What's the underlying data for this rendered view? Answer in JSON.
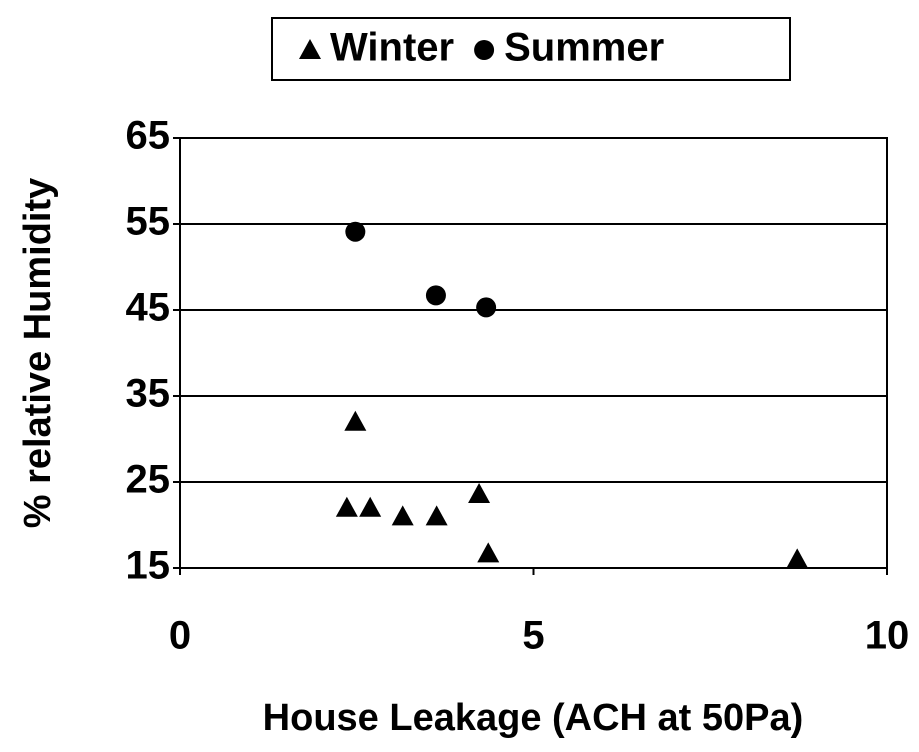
{
  "chart_data": {
    "type": "scatter",
    "x_label": "House Leakage (ACH at 50Pa)",
    "y_label": "% relative Humidity",
    "xlim": [
      0,
      10
    ],
    "xticks": [
      0,
      5,
      10
    ],
    "ylim": [
      15,
      65
    ],
    "yticks": [
      15,
      25,
      35,
      45,
      55,
      65
    ],
    "grid": true,
    "legend": "top",
    "series": [
      {
        "name": "Winter",
        "color": "#000000",
        "marker": "triangle",
        "x": [
          2.36,
          2.48,
          2.69,
          3.15,
          3.63,
          4.23,
          4.36,
          8.73
        ],
        "values": [
          22,
          32,
          22,
          21,
          21,
          23.6,
          16.7,
          16
        ]
      },
      {
        "name": "Summer",
        "color": "#000000",
        "marker": "circle",
        "x": [
          2.48,
          3.62,
          4.33
        ],
        "values": [
          54.1,
          46.7,
          45.3
        ]
      }
    ]
  }
}
